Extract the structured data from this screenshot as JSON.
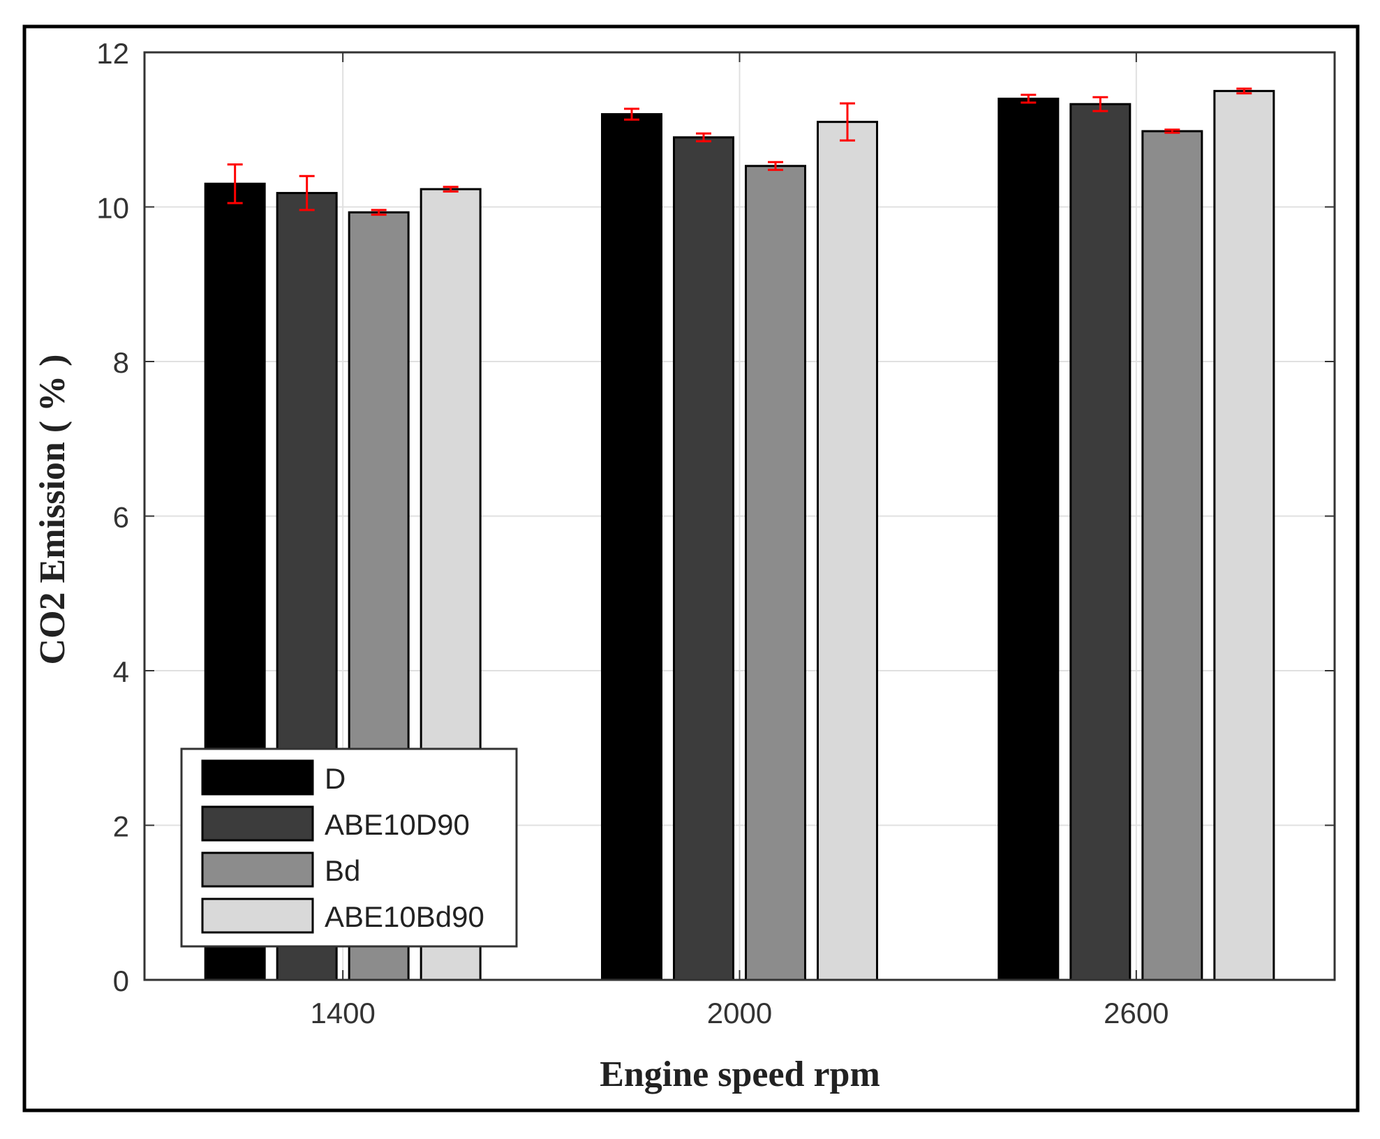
{
  "chart_data": {
    "type": "bar",
    "title": "",
    "xlabel": "Engine speed rpm",
    "ylabel": "CO2 Emission ( % )",
    "categories": [
      "1400",
      "2000",
      "2600"
    ],
    "ylim": [
      0,
      12
    ],
    "yticks": [
      0,
      2,
      4,
      6,
      8,
      10,
      12
    ],
    "grid": true,
    "legend_position": "bottom-left",
    "series": [
      {
        "name": "D",
        "color": "#000000",
        "values": [
          10.3,
          11.2,
          11.4
        ],
        "errors": [
          0.25,
          0.07,
          0.05
        ]
      },
      {
        "name": "ABE10D90",
        "color": "#3c3c3c",
        "values": [
          10.18,
          10.9,
          11.33
        ],
        "errors": [
          0.22,
          0.05,
          0.09
        ]
      },
      {
        "name": "Bd",
        "color": "#8c8c8c",
        "values": [
          9.93,
          10.53,
          10.98
        ],
        "errors": [
          0.03,
          0.05,
          0.02
        ]
      },
      {
        "name": "ABE10Bd90",
        "color": "#d9d9d9",
        "values": [
          10.23,
          11.1,
          11.5
        ],
        "errors": [
          0.03,
          0.24,
          0.03
        ]
      }
    ],
    "error_bar_color": "#ff0000"
  }
}
